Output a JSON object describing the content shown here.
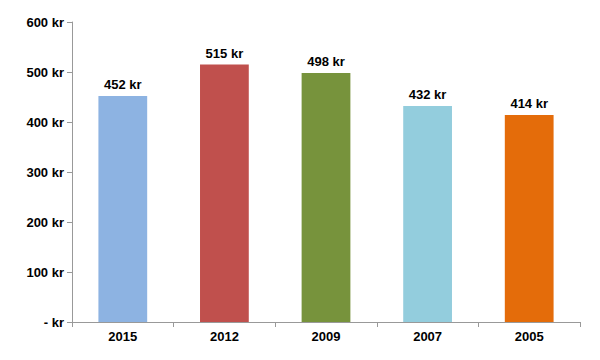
{
  "chart_data": {
    "type": "bar",
    "categories": [
      "2015",
      "2012",
      "2009",
      "2007",
      "2005"
    ],
    "values": [
      452,
      515,
      498,
      432,
      414
    ],
    "value_labels": [
      "452 kr",
      "515 kr",
      "498 kr",
      "432 kr",
      "414 kr"
    ],
    "colors": [
      "#8db3e2",
      "#c0504d",
      "#77933c",
      "#93cddd",
      "#e46c0a"
    ],
    "ylim": [
      0,
      600
    ],
    "yticks": [
      {
        "value": 0,
        "label": "- kr"
      },
      {
        "value": 100,
        "label": "100 kr"
      },
      {
        "value": 200,
        "label": "200 kr"
      },
      {
        "value": 300,
        "label": "300 kr"
      },
      {
        "value": 400,
        "label": "400 kr"
      },
      {
        "value": 500,
        "label": "500 kr"
      },
      {
        "value": 600,
        "label": "600 kr"
      }
    ],
    "grid": false,
    "data_labels": true
  }
}
